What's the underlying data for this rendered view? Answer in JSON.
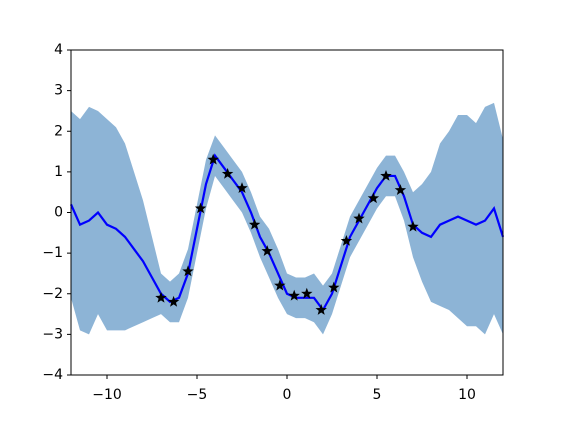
{
  "chart_data": {
    "type": "line",
    "x": [
      -12,
      -11.5,
      -11,
      -10.5,
      -10,
      -9.5,
      -9,
      -8.5,
      -8,
      -7.5,
      -7,
      -6.5,
      -6,
      -5.5,
      -5,
      -4.5,
      -4,
      -3.5,
      -3,
      -2.5,
      -2,
      -1.5,
      -1,
      -0.5,
      0,
      0.5,
      1,
      1.5,
      2,
      2.5,
      3,
      3.5,
      4,
      4.5,
      5,
      5.5,
      6,
      6.5,
      7,
      7.5,
      8,
      8.5,
      9,
      9.5,
      10,
      10.5,
      11,
      11.5,
      12
    ],
    "band": {
      "color": "#8db4d6",
      "upper": [
        2.5,
        2.3,
        2.6,
        2.5,
        2.3,
        2.1,
        1.7,
        1.0,
        0.3,
        -0.6,
        -1.5,
        -1.7,
        -1.5,
        -0.9,
        0.2,
        1.3,
        1.9,
        1.6,
        1.3,
        1.0,
        0.5,
        -0.1,
        -0.4,
        -0.9,
        -1.5,
        -1.6,
        -1.6,
        -1.5,
        -1.8,
        -1.5,
        -0.8,
        -0.1,
        0.3,
        0.7,
        1.1,
        1.4,
        1.4,
        1.0,
        0.5,
        0.7,
        1.0,
        1.7,
        2.0,
        2.4,
        2.4,
        2.2,
        2.6,
        2.7,
        1.8
      ],
      "lower": [
        -2.1,
        -2.9,
        -3.0,
        -2.5,
        -2.9,
        -2.9,
        -2.9,
        -2.8,
        -2.7,
        -2.6,
        -2.5,
        -2.7,
        -2.7,
        -2.1,
        -1.0,
        0.1,
        0.9,
        0.6,
        0.3,
        0.0,
        -0.5,
        -1.1,
        -1.6,
        -2.1,
        -2.5,
        -2.6,
        -2.6,
        -2.7,
        -3.0,
        -2.5,
        -1.8,
        -1.1,
        -0.7,
        -0.3,
        0.1,
        0.4,
        0.4,
        -0.2,
        -1.1,
        -1.7,
        -2.2,
        -2.3,
        -2.4,
        -2.6,
        -2.8,
        -2.8,
        -3.0,
        -2.5,
        -3.0
      ]
    },
    "series": [
      {
        "color": "#0000ff",
        "values": [
          0.2,
          -0.3,
          -0.2,
          0.0,
          -0.3,
          -0.4,
          -0.6,
          -0.9,
          -1.2,
          -1.6,
          -2.0,
          -2.2,
          -2.1,
          -1.5,
          -0.4,
          0.7,
          1.4,
          1.1,
          0.8,
          0.5,
          0.0,
          -0.6,
          -1.0,
          -1.5,
          -2.0,
          -2.1,
          -2.1,
          -2.1,
          -2.4,
          -2.0,
          -1.3,
          -0.6,
          -0.2,
          0.2,
          0.6,
          0.9,
          0.9,
          0.4,
          -0.3,
          -0.5,
          -0.6,
          -0.3,
          -0.2,
          -0.1,
          -0.2,
          -0.3,
          -0.2,
          0.1,
          -0.6
        ]
      }
    ],
    "points": {
      "color": "#000000",
      "marker": "star",
      "x": [
        -7,
        -6.3,
        -5.5,
        -4.8,
        -4.1,
        -3.3,
        -2.5,
        -1.8,
        -1.1,
        -0.4,
        0.4,
        1.1,
        1.9,
        2.6,
        3.3,
        4.0,
        4.8,
        5.5,
        6.3,
        7.0
      ],
      "y": [
        -2.1,
        -2.2,
        -1.45,
        0.1,
        1.3,
        0.95,
        0.6,
        -0.3,
        -0.95,
        -1.8,
        -2.05,
        -2.0,
        -2.4,
        -1.85,
        -0.7,
        -0.15,
        0.35,
        0.9,
        0.55,
        -0.35
      ]
    },
    "xlim": [
      -12,
      12
    ],
    "xticks": [
      {
        "value": -10,
        "label": "−10"
      },
      {
        "value": -5,
        "label": "−5"
      },
      0,
      5,
      10
    ],
    "ylim": [
      -4,
      4
    ],
    "yticks": [
      {
        "value": -4,
        "label": "−4"
      },
      {
        "value": -3,
        "label": "−3"
      },
      {
        "value": -2,
        "label": "−2"
      },
      {
        "value": -1,
        "label": "−1"
      },
      0,
      1,
      2,
      3,
      4
    ]
  }
}
